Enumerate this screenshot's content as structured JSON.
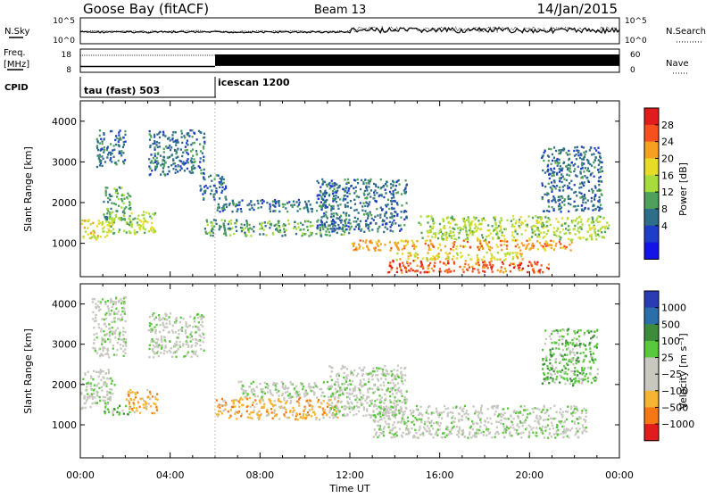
{
  "header": {
    "station": "Goose Bay (fitACF)",
    "beam": "Beam 13",
    "date": "14/Jan/2015"
  },
  "noise_panel": {
    "left_label": "N.Sky",
    "left_ticks": [
      "10^5",
      "10^0"
    ],
    "right_ticks": [
      "10^5",
      "10^0"
    ],
    "right_label": "N.Search"
  },
  "freq_panel": {
    "left_label_1": "Freq.",
    "left_label_2": "[MHz]",
    "left_ticks": [
      "18",
      "8"
    ],
    "right_ticks": [
      "60",
      "0"
    ],
    "right_label": "Nave",
    "switch_time_hours": 6.0,
    "freq_before_mhz": 10.5,
    "freq_after_mhz": 11.0
  },
  "cpid_panel": {
    "label": "CPID",
    "modes": [
      {
        "text": "tau (fast) 503",
        "start_hours": 0
      },
      {
        "text": "icescan 1200",
        "start_hours": 6
      }
    ]
  },
  "chart_data": [
    {
      "type": "heatmap",
      "name": "power",
      "ylabel": "Slant Range [km]",
      "ylim": [
        180,
        4500
      ],
      "yticks": [
        1000,
        2000,
        3000,
        4000
      ],
      "xlim_hours": [
        0,
        24
      ],
      "colorbar": {
        "label": "Power [dB]",
        "ticks": [
          "28",
          "24",
          "20",
          "16",
          "12",
          "8",
          "4"
        ],
        "colors": [
          "#e01c1c",
          "#f5501e",
          "#f5a020",
          "#e6dc28",
          "#a8dc3c",
          "#4ea05a",
          "#2e6e88",
          "#1e3ec8",
          "#1414e6"
        ]
      },
      "regions": [
        {
          "t": [
            0,
            1.3
          ],
          "r": [
            1100,
            1600
          ],
          "level": 3
        },
        {
          "t": [
            1.0,
            2.2
          ],
          "r": [
            1600,
            2400
          ],
          "level": 5
        },
        {
          "t": [
            1.2,
            3.3
          ],
          "r": [
            1250,
            1800
          ],
          "level": 4
        },
        {
          "t": [
            0.7,
            2.0
          ],
          "r": [
            2900,
            3800
          ],
          "level": 6
        },
        {
          "t": [
            3.0,
            5.5
          ],
          "r": [
            2700,
            3800
          ],
          "level": 6
        },
        {
          "t": [
            5.3,
            6.5
          ],
          "r": [
            2100,
            2700
          ],
          "level": 6
        },
        {
          "t": [
            5.5,
            12.0
          ],
          "r": [
            1200,
            1600
          ],
          "level": 5
        },
        {
          "t": [
            6.0,
            11.0
          ],
          "r": [
            1800,
            2100
          ],
          "level": 6
        },
        {
          "t": [
            10.5,
            14.5
          ],
          "r": [
            1300,
            2600
          ],
          "level": 6
        },
        {
          "t": [
            12.0,
            22.0
          ],
          "r": [
            850,
            1100
          ],
          "level": 2
        },
        {
          "t": [
            13.5,
            21.0
          ],
          "r": [
            300,
            600
          ],
          "level": 1
        },
        {
          "t": [
            14.0,
            20.0
          ],
          "r": [
            600,
            800
          ],
          "level": 3
        },
        {
          "t": [
            15.0,
            23.5
          ],
          "r": [
            1100,
            1700
          ],
          "level": 4
        },
        {
          "t": [
            20.5,
            23.2
          ],
          "r": [
            1800,
            3400
          ],
          "level": 6
        }
      ]
    },
    {
      "type": "heatmap",
      "name": "velocity",
      "ylabel": "Slant Range [km]",
      "ylim": [
        180,
        4500
      ],
      "yticks": [
        1000,
        2000,
        3000,
        4000
      ],
      "xlim_hours": [
        0,
        24
      ],
      "xticks": [
        "00:00",
        "04:00",
        "08:00",
        "12:00",
        "16:00",
        "20:00",
        "00:00"
      ],
      "xlabel": "Time UT",
      "colorbar": {
        "label": "Velocity [m s⁻¹]",
        "ticks": [
          "1000",
          "500",
          "100",
          "25",
          "−25",
          "−100",
          "−500",
          "−1000"
        ],
        "colors": [
          "#2a3cb4",
          "#2a6eaa",
          "#3c8c3c",
          "#5ac83c",
          "#c8c8c0",
          "#c8c8c0",
          "#f5b432",
          "#f57814",
          "#e01c1c"
        ]
      },
      "regions": [
        {
          "t": [
            0,
            1.5
          ],
          "r": [
            1400,
            2400
          ],
          "level": 4
        },
        {
          "t": [
            0.5,
            2.0
          ],
          "r": [
            2700,
            4200
          ],
          "level": 4
        },
        {
          "t": [
            1.0,
            2.2
          ],
          "r": [
            1250,
            1500
          ],
          "level": 3
        },
        {
          "t": [
            2.0,
            3.4
          ],
          "r": [
            1300,
            1900
          ],
          "level": 6
        },
        {
          "t": [
            3.0,
            5.5
          ],
          "r": [
            2700,
            3800
          ],
          "level": 4
        },
        {
          "t": [
            6.0,
            11.5
          ],
          "r": [
            1150,
            1700
          ],
          "level": 6
        },
        {
          "t": [
            7.0,
            12.0
          ],
          "r": [
            1700,
            2100
          ],
          "level": 4
        },
        {
          "t": [
            11.0,
            14.5
          ],
          "r": [
            1200,
            2500
          ],
          "level": 4
        },
        {
          "t": [
            13.0,
            22.5
          ],
          "r": [
            700,
            1500
          ],
          "level": 4
        },
        {
          "t": [
            20.5,
            23.0
          ],
          "r": [
            2000,
            3400
          ],
          "level": 3
        }
      ]
    }
  ]
}
